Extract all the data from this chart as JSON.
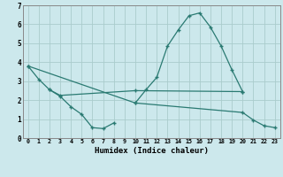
{
  "xlabel": "Humidex (Indice chaleur)",
  "bg_color": "#cce8ec",
  "grid_color": "#aacccc",
  "line_color": "#2a7a72",
  "xlim": [
    -0.5,
    23.5
  ],
  "ylim": [
    0,
    7
  ],
  "xticks": [
    0,
    1,
    2,
    3,
    4,
    5,
    6,
    7,
    8,
    9,
    10,
    11,
    12,
    13,
    14,
    15,
    16,
    17,
    18,
    19,
    20,
    21,
    22,
    23
  ],
  "yticks": [
    0,
    1,
    2,
    3,
    4,
    5,
    6,
    7
  ],
  "curve1_x": [
    0,
    1,
    2,
    3,
    4,
    5,
    6,
    7,
    8
  ],
  "curve1_y": [
    3.8,
    3.1,
    2.55,
    2.2,
    1.65,
    1.25,
    0.55,
    0.5,
    0.8
  ],
  "curve2_x": [
    2,
    3,
    10,
    20
  ],
  "curve2_y": [
    2.55,
    2.25,
    2.5,
    2.45
  ],
  "curve3_x": [
    10,
    11,
    12,
    13,
    14,
    15,
    16,
    17,
    18,
    19,
    20
  ],
  "curve3_y": [
    1.85,
    2.55,
    3.2,
    4.85,
    5.7,
    6.45,
    6.6,
    5.85,
    4.85,
    3.6,
    2.45
  ],
  "curve4_x": [
    0,
    10,
    20,
    21,
    22,
    23
  ],
  "curve4_y": [
    3.8,
    1.85,
    1.35,
    0.95,
    0.65,
    0.55
  ]
}
